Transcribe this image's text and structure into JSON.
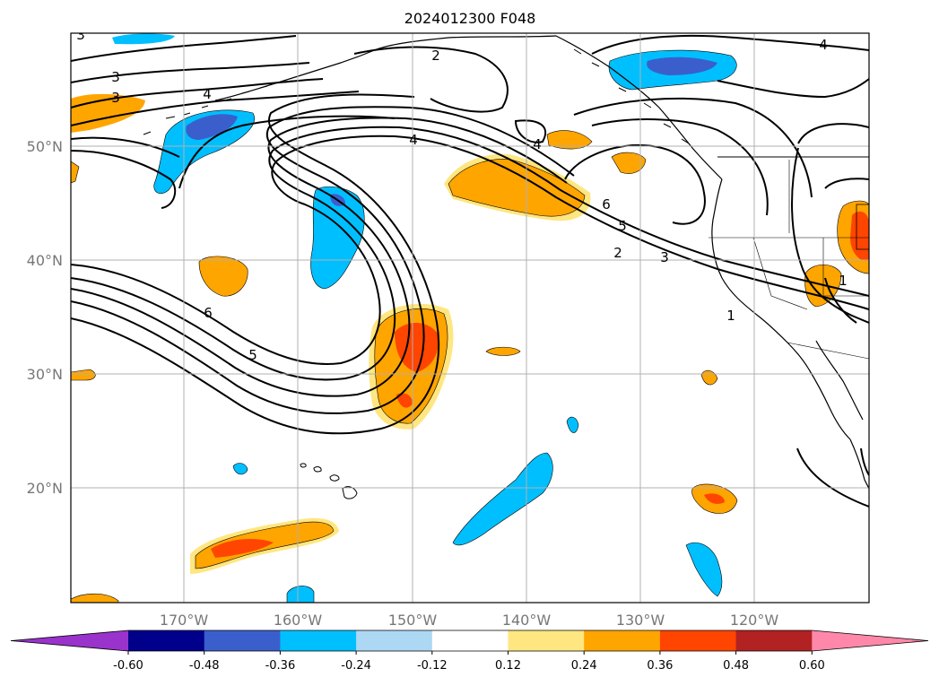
{
  "title": "2024012300 F048",
  "lat_labels": [
    "50°N",
    "40°N",
    "30°N",
    "20°N"
  ],
  "lon_labels": [
    "170°W",
    "160°W",
    "150°W",
    "140°W",
    "130°W",
    "120°W"
  ],
  "contour_labels": [
    "3",
    "3",
    "3",
    "4",
    "2",
    "4",
    "4",
    "4",
    "6",
    "5",
    "2",
    "3",
    "1",
    "6",
    "5",
    "1"
  ],
  "colorbar": {
    "ticks": [
      "-0.60",
      "-0.48",
      "-0.36",
      "-0.24",
      "-0.12",
      "0.12",
      "0.24",
      "0.36",
      "0.48",
      "0.60"
    ],
    "colors": [
      "#9933cc",
      "#00008b",
      "#3a5fcd",
      "#00bfff",
      "#add8f4",
      "#ffffff",
      "#ffe680",
      "#ffa500",
      "#ff4500",
      "#b22222",
      "#ff88aa"
    ]
  },
  "map_colors": {
    "grid": "#b0b0b0",
    "land": "#000000",
    "contour": "#000000",
    "label": "#777777"
  }
}
